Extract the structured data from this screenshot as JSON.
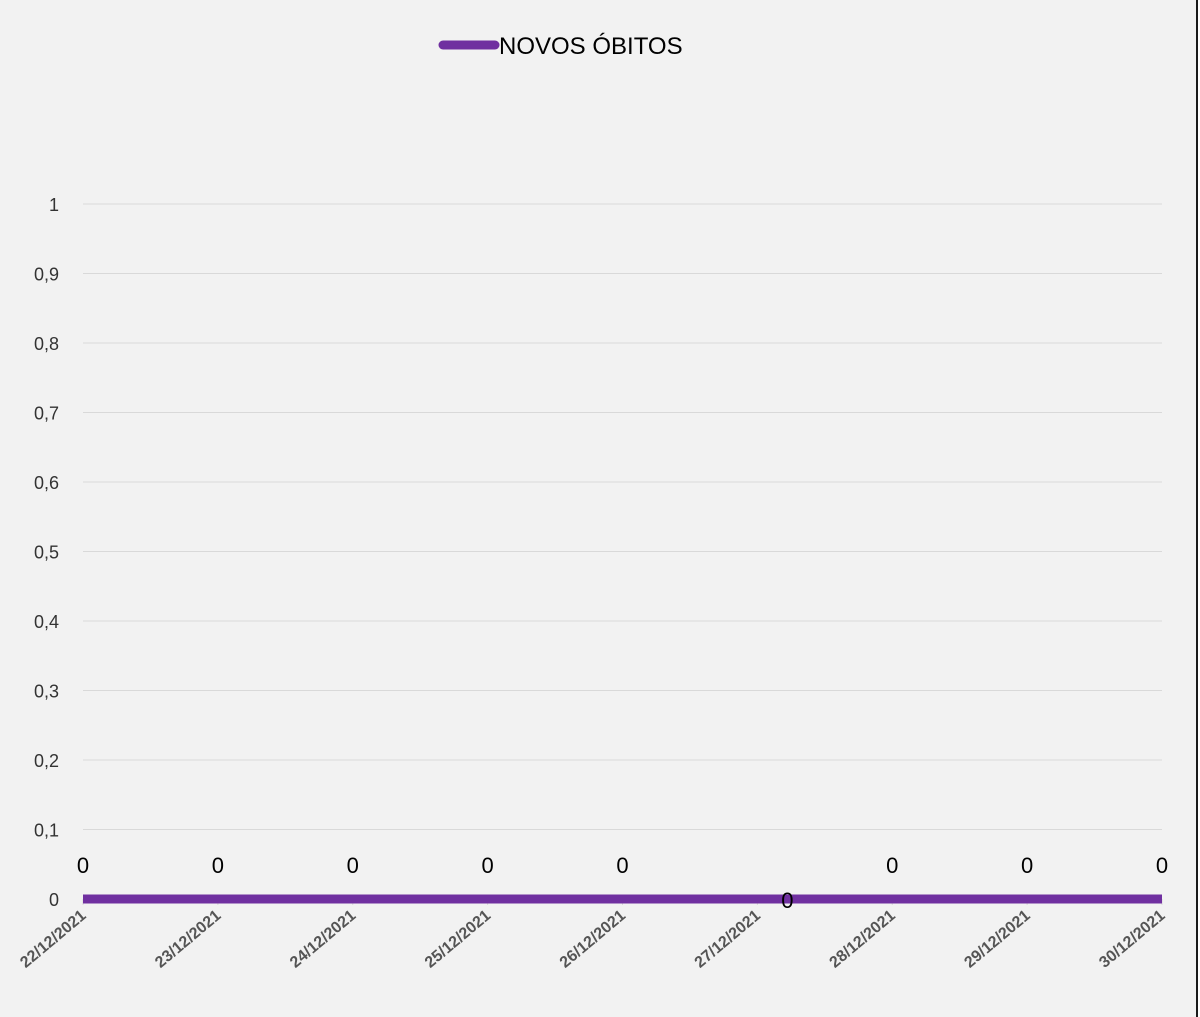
{
  "chart_data": {
    "type": "line",
    "categories": [
      "22/12/2021",
      "23/12/2021",
      "24/12/2021",
      "25/12/2021",
      "26/12/2021",
      "27/12/2021",
      "28/12/2021",
      "29/12/2021",
      "30/12/2021"
    ],
    "series": [
      {
        "name": "NOVOS ÓBITOS",
        "values": [
          0,
          0,
          0,
          0,
          0,
          0,
          0,
          0,
          0
        ],
        "color": "#7030a0"
      }
    ],
    "data_labels": [
      "0",
      "0",
      "0",
      "0",
      "0",
      "0",
      "0",
      "0",
      "0"
    ],
    "y_ticks": [
      "0",
      "0,1",
      "0,2",
      "0,3",
      "0,4",
      "0,5",
      "0,6",
      "0,7",
      "0,8",
      "0,9",
      "1"
    ],
    "ylim": [
      0,
      1
    ],
    "grid": true,
    "legend_position": "top",
    "title": "",
    "xlabel": "",
    "ylabel": "",
    "gridline_color": "#d9d9d9",
    "background_color": "#f2f2f2"
  }
}
